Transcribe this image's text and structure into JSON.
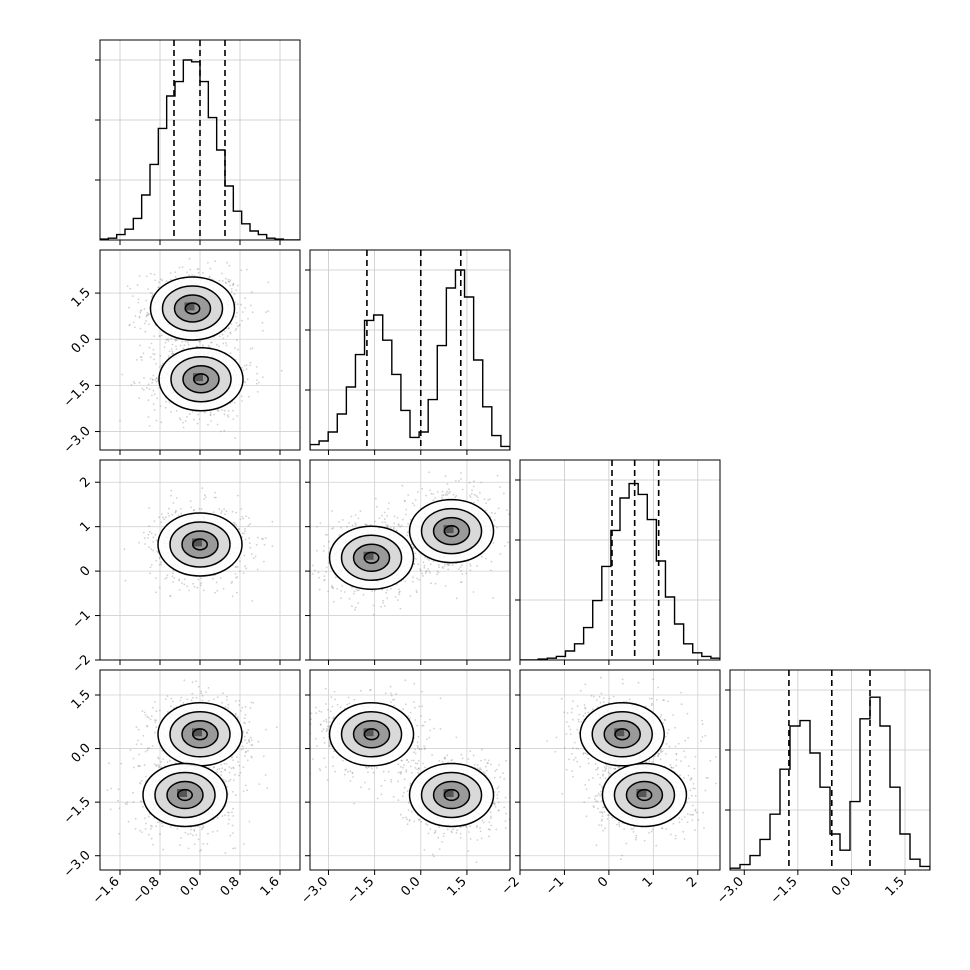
{
  "chart_data": {
    "type": "corner",
    "variables": [
      {
        "index": 0,
        "range": [
          -2.0,
          2.0
        ],
        "ticks": [
          -1.6,
          -0.8,
          0.0,
          0.8,
          1.6
        ],
        "tick_labels": [
          "−1.6",
          "−0.8",
          "0.0",
          "0.8",
          "1.6"
        ],
        "quantiles": [
          -0.52,
          0.0,
          0.5
        ],
        "hist": [
          0.005,
          0.01,
          0.03,
          0.06,
          0.12,
          0.25,
          0.42,
          0.62,
          0.8,
          0.88,
          1.0,
          0.99,
          0.88,
          0.68,
          0.5,
          0.3,
          0.16,
          0.09,
          0.05,
          0.03,
          0.01,
          0.005,
          0.0,
          0.0
        ]
      },
      {
        "index": 1,
        "range": [
          -3.6,
          2.9
        ],
        "ticks": [
          -3.0,
          -1.5,
          0.0,
          1.5
        ],
        "tick_labels": [
          "−3.0",
          "−1.5",
          "0.0",
          "1.5"
        ],
        "quantiles": [
          -1.75,
          0.0,
          1.3
        ],
        "hist": [
          0.03,
          0.05,
          0.1,
          0.2,
          0.35,
          0.53,
          0.72,
          0.75,
          0.61,
          0.42,
          0.22,
          0.07,
          0.1,
          0.28,
          0.58,
          0.9,
          1.0,
          0.85,
          0.5,
          0.24,
          0.08,
          0.02
        ]
      },
      {
        "index": 2,
        "range": [
          -2.0,
          2.5
        ],
        "ticks": [
          -2,
          -1,
          0,
          1,
          2
        ],
        "tick_labels": [
          "−2",
          "−1",
          "0",
          "1",
          "2"
        ],
        "quantiles": [
          0.07,
          0.58,
          1.12
        ],
        "hist": [
          0.0,
          0.0,
          0.005,
          0.01,
          0.02,
          0.05,
          0.09,
          0.18,
          0.33,
          0.52,
          0.72,
          0.9,
          0.98,
          0.92,
          0.78,
          0.55,
          0.35,
          0.2,
          0.09,
          0.04,
          0.02,
          0.01
        ]
      },
      {
        "index": 3,
        "range": [
          -3.4,
          2.2
        ],
        "ticks": [
          -3.0,
          -1.5,
          0.0,
          1.5
        ],
        "tick_labels": [
          "−3.0",
          "−1.5",
          "0.0",
          "1.5"
        ],
        "quantiles": [
          -1.75,
          -0.55,
          0.52
        ],
        "hist": [
          0.01,
          0.03,
          0.08,
          0.17,
          0.31,
          0.56,
          0.8,
          0.83,
          0.65,
          0.46,
          0.2,
          0.11,
          0.38,
          0.84,
          0.96,
          0.8,
          0.46,
          0.2,
          0.06,
          0.02
        ]
      }
    ],
    "pairs": [
      {
        "row": 1,
        "col": 0,
        "clusters": [
          {
            "x": -0.15,
            "y": 1.0
          },
          {
            "x": 0.02,
            "y": -1.3
          }
        ]
      },
      {
        "row": 2,
        "col": 0,
        "clusters": [
          {
            "x": 0.0,
            "y": 0.6
          }
        ]
      },
      {
        "row": 2,
        "col": 1,
        "clusters": [
          {
            "x": -1.6,
            "y": 0.3
          },
          {
            "x": 1.0,
            "y": 0.9
          }
        ]
      },
      {
        "row": 3,
        "col": 0,
        "clusters": [
          {
            "x": 0.0,
            "y": 0.4
          },
          {
            "x": -0.3,
            "y": -1.3
          }
        ]
      },
      {
        "row": 3,
        "col": 1,
        "clusters": [
          {
            "x": -1.6,
            "y": 0.4
          },
          {
            "x": 1.0,
            "y": -1.3
          }
        ]
      },
      {
        "row": 3,
        "col": 2,
        "clusters": [
          {
            "x": 0.3,
            "y": 0.4
          },
          {
            "x": 0.8,
            "y": -1.3
          }
        ]
      }
    ],
    "grid": true,
    "legend": "none",
    "title": "",
    "xlabel": "",
    "ylabel": ""
  }
}
